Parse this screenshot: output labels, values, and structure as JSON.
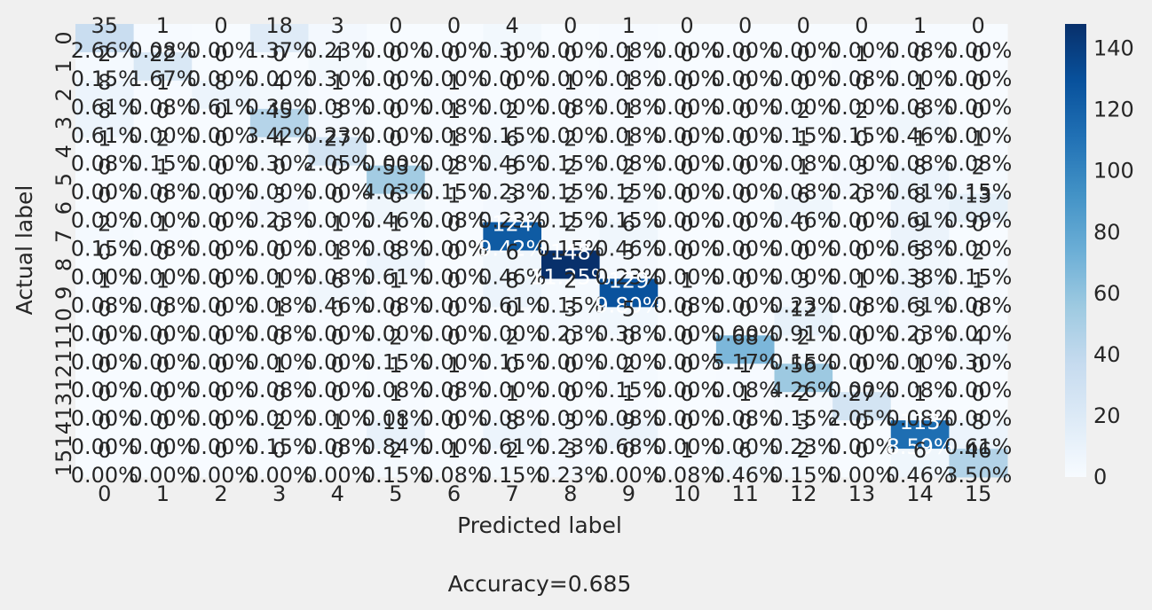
{
  "chart_data": {
    "type": "heatmap",
    "title": "",
    "xlabel": "Predicted label",
    "ylabel": "Actual label",
    "footer": "Accuracy=0.685",
    "cmap": "Blues",
    "x_tick_labels": [
      "0",
      "1",
      "2",
      "3",
      "4",
      "5",
      "6",
      "7",
      "8",
      "9",
      "10",
      "11",
      "12",
      "13",
      "14",
      "15"
    ],
    "y_tick_labels": [
      "0",
      "1",
      "2",
      "3",
      "4",
      "5",
      "6",
      "7",
      "8",
      "9",
      "10",
      "11",
      "12",
      "13",
      "14",
      "15"
    ],
    "colorbar": {
      "range": [
        0,
        148
      ],
      "ticks": [
        0,
        20,
        40,
        60,
        80,
        100,
        120,
        140
      ]
    },
    "matrix": [
      [
        35,
        1,
        0,
        18,
        3,
        0,
        0,
        4,
        0,
        1,
        0,
        0,
        0,
        0,
        1,
        0
      ],
      [
        2,
        22,
        0,
        0,
        4,
        0,
        0,
        0,
        0,
        1,
        0,
        0,
        0,
        1,
        0,
        0
      ],
      [
        8,
        1,
        8,
        4,
        1,
        0,
        1,
        0,
        1,
        1,
        0,
        0,
        0,
        0,
        1,
        0
      ],
      [
        8,
        0,
        0,
        45,
        3,
        0,
        1,
        2,
        0,
        1,
        0,
        0,
        2,
        2,
        6,
        0
      ],
      [
        1,
        2,
        0,
        4,
        27,
        0,
        1,
        6,
        2,
        1,
        0,
        0,
        1,
        0,
        1,
        1
      ],
      [
        0,
        1,
        0,
        0,
        0,
        53,
        2,
        3,
        2,
        2,
        0,
        0,
        1,
        3,
        8,
        2
      ],
      [
        0,
        0,
        0,
        3,
        0,
        6,
        1,
        3,
        2,
        2,
        0,
        0,
        6,
        0,
        8,
        13
      ],
      [
        2,
        1,
        0,
        0,
        1,
        1,
        0,
        124,
        2,
        6,
        0,
        0,
        0,
        0,
        9,
        0
      ],
      [
        0,
        0,
        0,
        0,
        1,
        8,
        0,
        6,
        148,
        3,
        0,
        0,
        0,
        0,
        5,
        2
      ],
      [
        1,
        1,
        0,
        1,
        6,
        1,
        0,
        8,
        2,
        129,
        1,
        0,
        3,
        1,
        8,
        1
      ],
      [
        0,
        0,
        0,
        1,
        0,
        0,
        0,
        0,
        3,
        5,
        0,
        0,
        12,
        0,
        3,
        0
      ],
      [
        0,
        0,
        0,
        0,
        0,
        2,
        0,
        2,
        0,
        0,
        0,
        68,
        2,
        0,
        0,
        4
      ],
      [
        0,
        0,
        0,
        1,
        0,
        1,
        1,
        0,
        0,
        2,
        0,
        1,
        56,
        0,
        1,
        0
      ],
      [
        0,
        0,
        0,
        0,
        0,
        1,
        0,
        1,
        0,
        1,
        0,
        1,
        2,
        27,
        1,
        0
      ],
      [
        0,
        0,
        0,
        2,
        1,
        11,
        0,
        8,
        3,
        9,
        0,
        0,
        3,
        0,
        113,
        8
      ],
      [
        0,
        0,
        0,
        0,
        0,
        2,
        1,
        2,
        3,
        0,
        1,
        6,
        2,
        0,
        6,
        46
      ]
    ],
    "percent_labels": [
      [
        "2.66%",
        "0.08%",
        "0.00%",
        "1.37%",
        "0.23%",
        "0.00%",
        "0.00%",
        "0.30%",
        "0.00%",
        "0.08%",
        "0.00%",
        "0.00%",
        "0.00%",
        "0.00%",
        "0.08%",
        "0.00%"
      ],
      [
        "0.15%",
        "1.67%",
        "0.00%",
        "0.00%",
        "0.30%",
        "0.00%",
        "0.00%",
        "0.00%",
        "0.00%",
        "0.08%",
        "0.00%",
        "0.00%",
        "0.00%",
        "0.08%",
        "0.00%",
        "0.00%"
      ],
      [
        "0.61%",
        "0.08%",
        "0.61%",
        "0.30%",
        "0.08%",
        "0.00%",
        "0.08%",
        "0.00%",
        "0.08%",
        "0.08%",
        "0.00%",
        "0.00%",
        "0.00%",
        "0.00%",
        "0.08%",
        "0.00%"
      ],
      [
        "0.61%",
        "0.00%",
        "0.00%",
        "3.42%",
        "0.23%",
        "0.00%",
        "0.08%",
        "0.15%",
        "0.00%",
        "0.08%",
        "0.00%",
        "0.00%",
        "0.15%",
        "0.15%",
        "0.46%",
        "0.00%"
      ],
      [
        "0.08%",
        "0.15%",
        "0.00%",
        "0.30%",
        "2.05%",
        "0.00%",
        "0.08%",
        "0.46%",
        "0.15%",
        "0.08%",
        "0.00%",
        "0.00%",
        "0.08%",
        "0.00%",
        "0.08%",
        "0.08%"
      ],
      [
        "0.00%",
        "0.08%",
        "0.00%",
        "0.00%",
        "0.00%",
        "4.03%",
        "0.15%",
        "0.23%",
        "0.15%",
        "0.15%",
        "0.00%",
        "0.00%",
        "0.08%",
        "0.23%",
        "0.61%",
        "0.15%"
      ],
      [
        "0.00%",
        "0.00%",
        "0.00%",
        "0.23%",
        "0.00%",
        "0.46%",
        "0.08%",
        "0.23%",
        "0.15%",
        "0.15%",
        "0.00%",
        "0.00%",
        "0.46%",
        "0.00%",
        "0.61%",
        "0.99%"
      ],
      [
        "0.15%",
        "0.08%",
        "0.00%",
        "0.00%",
        "0.08%",
        "0.08%",
        "0.00%",
        "9.42%",
        "0.15%",
        "0.46%",
        "0.00%",
        "0.00%",
        "0.00%",
        "0.00%",
        "0.68%",
        "0.00%"
      ],
      [
        "0.00%",
        "0.00%",
        "0.00%",
        "0.00%",
        "0.08%",
        "0.61%",
        "0.00%",
        "0.46%",
        "11.25%",
        "0.23%",
        "0.00%",
        "0.00%",
        "0.00%",
        "0.00%",
        "0.38%",
        "0.15%"
      ],
      [
        "0.08%",
        "0.08%",
        "0.00%",
        "0.08%",
        "0.46%",
        "0.08%",
        "0.00%",
        "0.61%",
        "0.15%",
        "9.80%",
        "0.08%",
        "0.00%",
        "0.23%",
        "0.08%",
        "0.61%",
        "0.08%"
      ],
      [
        "0.00%",
        "0.00%",
        "0.00%",
        "0.08%",
        "0.00%",
        "0.00%",
        "0.00%",
        "0.00%",
        "0.23%",
        "0.38%",
        "0.00%",
        "0.00%",
        "0.91%",
        "0.00%",
        "0.23%",
        "0.00%"
      ],
      [
        "0.00%",
        "0.00%",
        "0.00%",
        "0.00%",
        "0.00%",
        "0.15%",
        "0.00%",
        "0.15%",
        "0.00%",
        "0.00%",
        "0.00%",
        "5.17%",
        "0.15%",
        "0.00%",
        "0.00%",
        "0.30%"
      ],
      [
        "0.00%",
        "0.00%",
        "0.00%",
        "0.08%",
        "0.00%",
        "0.08%",
        "0.08%",
        "0.00%",
        "0.00%",
        "0.15%",
        "0.00%",
        "0.08%",
        "4.26%",
        "0.00%",
        "0.08%",
        "0.00%"
      ],
      [
        "0.00%",
        "0.00%",
        "0.00%",
        "0.00%",
        "0.00%",
        "0.08%",
        "0.00%",
        "0.08%",
        "0.00%",
        "0.08%",
        "0.00%",
        "0.08%",
        "0.15%",
        "2.05%",
        "0.08%",
        "0.00%"
      ],
      [
        "0.00%",
        "0.00%",
        "0.00%",
        "0.15%",
        "0.08%",
        "0.84%",
        "0.00%",
        "0.61%",
        "0.23%",
        "0.68%",
        "0.00%",
        "0.00%",
        "0.23%",
        "0.00%",
        "8.59%",
        "0.61%"
      ],
      [
        "0.00%",
        "0.00%",
        "0.00%",
        "0.00%",
        "0.00%",
        "0.15%",
        "0.08%",
        "0.15%",
        "0.23%",
        "0.00%",
        "0.08%",
        "0.46%",
        "0.15%",
        "0.00%",
        "0.46%",
        "3.50%"
      ]
    ]
  }
}
